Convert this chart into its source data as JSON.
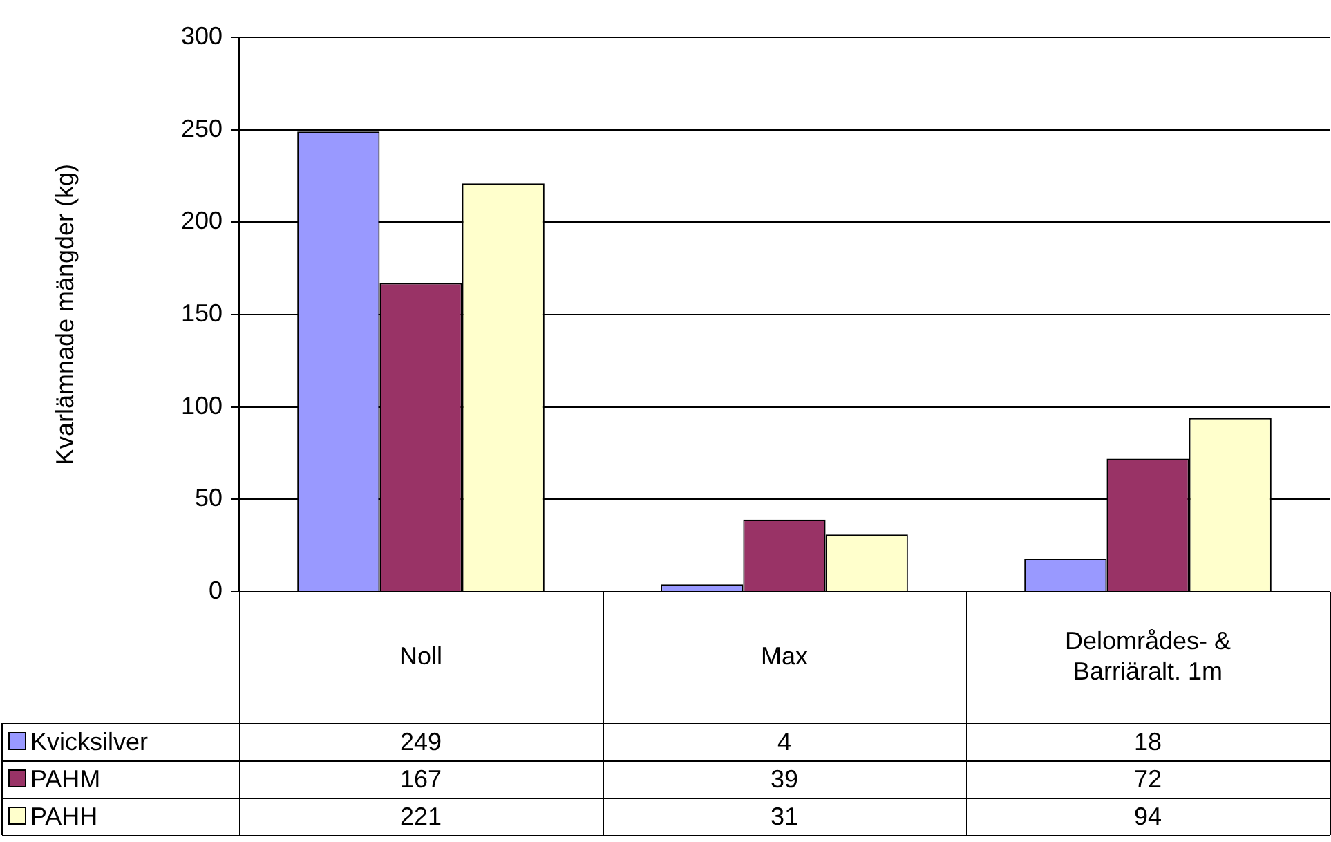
{
  "chart_data": {
    "type": "bar",
    "ylabel": "Kvarlämnade mängder (kg)",
    "categories": [
      "Noll",
      "Max",
      "Delområdes- & Barriäralt. 1m"
    ],
    "series": [
      {
        "name": "Kvicksilver",
        "color": "#9999ff",
        "values": [
          249,
          4,
          18
        ]
      },
      {
        "name": "PAHM",
        "color": "#993366",
        "values": [
          167,
          39,
          72
        ]
      },
      {
        "name": "PAHH",
        "color": "#ffffcc",
        "values": [
          221,
          31,
          94
        ]
      }
    ],
    "ylim": [
      0,
      300
    ],
    "yticks": [
      0,
      50,
      100,
      150,
      200,
      250,
      300
    ],
    "grid": "y",
    "legend": "bottom left",
    "data_labels": true
  }
}
